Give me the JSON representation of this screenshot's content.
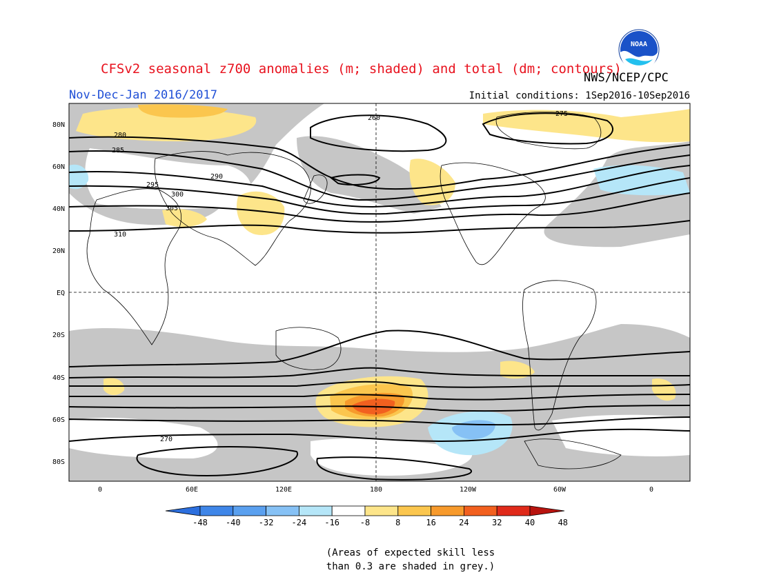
{
  "header": {
    "title": "CFSv2 seasonal z700 anomalies (m; shaded) and total (dm; contours)",
    "organization": "NWS/NCEP/CPC",
    "period": "Nov-Dec-Jan 2016/2017",
    "initial_conditions": "Initial conditions: 1Sep2016-10Sep2016",
    "logo_text": "NOAA"
  },
  "map": {
    "lat_labels": [
      "80N",
      "60N",
      "40N",
      "20N",
      "EQ",
      "20S",
      "40S",
      "60S",
      "80S"
    ],
    "lon_labels": [
      "0",
      "60E",
      "120E",
      "180",
      "120W",
      "60W",
      "0"
    ],
    "contour_labels": [
      "260",
      "275",
      "280",
      "285",
      "290",
      "295",
      "300",
      "305",
      "310",
      "270"
    ]
  },
  "legend": {
    "ticks": [
      "-48",
      "-40",
      "-32",
      "-24",
      "-16",
      "-8",
      "8",
      "16",
      "24",
      "32",
      "40",
      "48"
    ],
    "colors": [
      "#2c6fde",
      "#3f86e8",
      "#5aa0ef",
      "#86c1f5",
      "#b5e6f8",
      "#ffffff",
      "#fde58a",
      "#fbc64e",
      "#f79a2c",
      "#f2601f",
      "#e02a1a",
      "#b8140f"
    ]
  },
  "note": {
    "line1": "(Areas of expected skill less",
    "line2": "than 0.3 are shaded in grey.)"
  },
  "colors": {
    "title": "#e8121e",
    "period": "#1f4fd6",
    "grey_mask": "#c6c6c6"
  }
}
